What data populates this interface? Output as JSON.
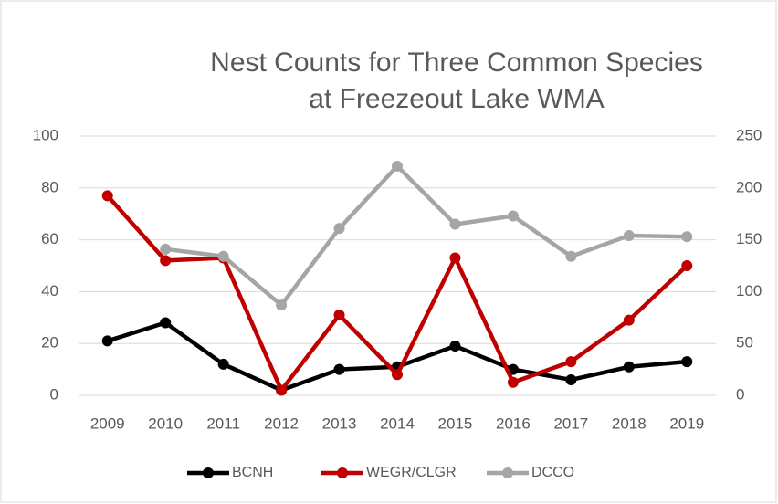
{
  "chart_data": {
    "type": "line",
    "title": [
      "Nest Counts for Three Common Species",
      "at Freezeout Lake WMA"
    ],
    "categories": [
      "2009",
      "2010",
      "2011",
      "2012",
      "2013",
      "2014",
      "2015",
      "2016",
      "2017",
      "2018",
      "2019"
    ],
    "series": [
      {
        "name": "BCNH",
        "color": "#000000",
        "values": [
          21,
          28,
          12,
          2,
          10,
          11,
          19,
          10,
          6,
          11,
          13
        ]
      },
      {
        "name": "WEGR/CLGR",
        "color": "#c00000",
        "values": [
          77,
          52,
          53,
          2,
          31,
          8,
          53,
          5,
          13,
          29,
          50
        ]
      },
      {
        "name": "DCCO",
        "color": "#a5a5a5",
        "axis": "y2",
        "values": [
          null,
          141,
          134,
          87,
          161,
          221,
          165,
          173,
          134,
          154,
          153
        ]
      }
    ],
    "ylim": [
      0,
      100
    ],
    "yticks": [
      0,
      20,
      40,
      60,
      80,
      100
    ],
    "y2lim": [
      0,
      250
    ],
    "y2ticks": [
      0,
      50,
      100,
      150,
      200,
      250
    ],
    "grid": true,
    "legend": "bottom"
  }
}
